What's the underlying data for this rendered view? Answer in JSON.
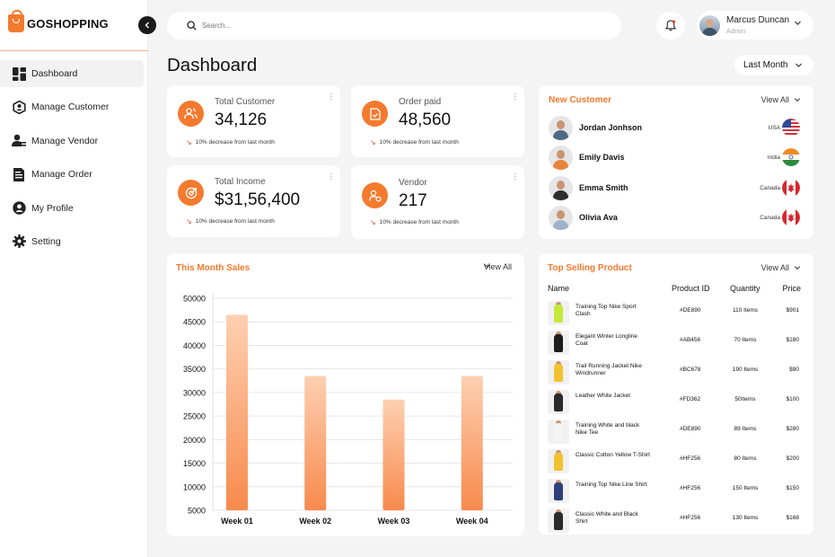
{
  "brand": {
    "name": "GOSHOPPING"
  },
  "sidebar": {
    "items": [
      {
        "label": "Dashboard",
        "icon": "dashboard-icon",
        "active": true
      },
      {
        "label": "Manage Customer",
        "icon": "customer-icon"
      },
      {
        "label": "Manage Vendor",
        "icon": "vendor-icon"
      },
      {
        "label": "Manage Order",
        "icon": "order-icon"
      },
      {
        "label": "My Profile",
        "icon": "profile-icon"
      },
      {
        "label": "Setting",
        "icon": "gear-icon"
      }
    ]
  },
  "header": {
    "search_placeholder": "Search...",
    "user_name": "Marcus Duncan",
    "user_role": "Admin"
  },
  "page": {
    "title": "Dashboard",
    "period": "Last Month"
  },
  "stats": [
    {
      "label": "Total Customer",
      "value": "34,126",
      "note": "10% decrease from last month",
      "icon": "users-icon"
    },
    {
      "label": "Order paid",
      "value": "48,560",
      "note": "10% decrease from last month",
      "icon": "receipt-icon"
    },
    {
      "label": "Total Income",
      "value": "$31,56,400",
      "note": "10% decrease from last month",
      "icon": "income-icon"
    },
    {
      "label": "Vendor",
      "value": "217",
      "note": "10% decrease from last month",
      "icon": "vendor-icon"
    }
  ],
  "new_customer": {
    "title": "New Customer",
    "view_all": "View All",
    "customers": [
      {
        "name": "Jordan Jonhson",
        "country": "USA",
        "flag": "usa-flag-icon",
        "shirt": "#4f6a86"
      },
      {
        "name": "Emily Davis",
        "country": "India",
        "flag": "india-flag-icon",
        "shirt": "#e8843b"
      },
      {
        "name": "Emma Smith",
        "country": "Canada",
        "flag": "canada-flag-icon",
        "shirt": "#2d2d2d"
      },
      {
        "name": "Olivia Ava",
        "country": "Canada",
        "flag": "canada-flag-icon",
        "shirt": "#9eb3c8"
      }
    ]
  },
  "sales": {
    "title": "This Month Sales",
    "view_all": "View All"
  },
  "chart_data": {
    "type": "bar",
    "categories": [
      "Week 01",
      "Week 02",
      "Week 03",
      "Week 04"
    ],
    "values": [
      46500,
      33500,
      28500,
      33500
    ],
    "ylim": [
      5000,
      50000
    ],
    "yticks": [
      50000,
      45000,
      40000,
      35000,
      30000,
      25000,
      20000,
      15000,
      10000,
      5000
    ],
    "grid": true,
    "bar_color_top": "#fdd0b1",
    "bar_color_bottom": "#f88a4d"
  },
  "top_selling": {
    "title": "Top Selling Product",
    "view_all": "View All",
    "columns": {
      "name": "Name",
      "id": "Product ID",
      "qty": "Quantity",
      "price": "Price"
    },
    "products": [
      {
        "name": "Training Top Nike Sport Clash",
        "id": "#DE890",
        "qty": "110 Items",
        "price": "$901",
        "color": "#c6e83a"
      },
      {
        "name": "Elegant Winter Longline Coat",
        "id": "#AB456",
        "qty": "70 Items",
        "price": "$180",
        "color": "#1d1d1d"
      },
      {
        "name": "Trail Running Jacket Nike Windrunner",
        "id": "#BC678",
        "qty": "190 Items",
        "price": "$90",
        "color": "#f2c230"
      },
      {
        "name": "Leather White Jacket",
        "id": "#FD362",
        "qty": "50Items",
        "price": "$100",
        "color": "#2a2a2a"
      },
      {
        "name": "Training White and black Nike Tee",
        "id": "#DE890",
        "qty": "89 Items",
        "price": "$280",
        "color": "#f4f4f4"
      },
      {
        "name": "Classic Cotton Yellow T-Shirt",
        "id": "#HF256",
        "qty": "80 Items",
        "price": "$200",
        "color": "#f2c230"
      },
      {
        "name": "Training Top Nike Line Shirt",
        "id": "#HF256",
        "qty": "150 Items",
        "price": "$150",
        "color": "#2f3f7a"
      },
      {
        "name": "Classic White and Black Shirt",
        "id": "#HF256",
        "qty": "130 Items",
        "price": "$168",
        "color": "#2a2a2a"
      }
    ]
  }
}
